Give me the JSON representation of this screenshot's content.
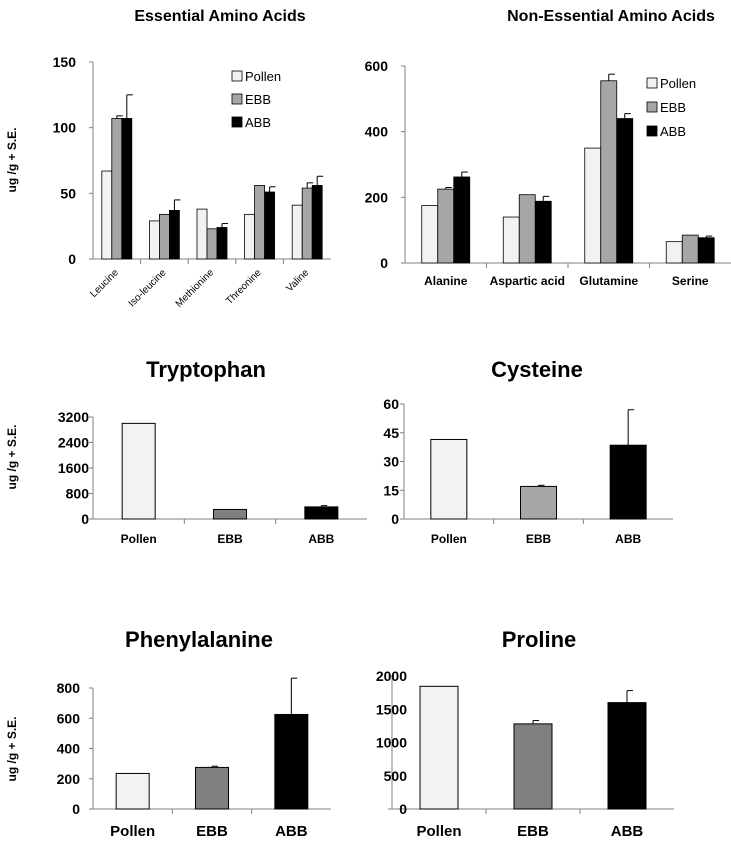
{
  "figure": {
    "ylabel": "ug /g + S.E.",
    "colors": {
      "Pollen": "#f2f2f2",
      "EBB_light": "#a6a6a6",
      "EBB_dark": "#808080",
      "ABB": "#000000",
      "axis": "#808080"
    }
  },
  "chart_data": [
    {
      "id": "essential",
      "type": "bar",
      "title": "Essential Amino Acids",
      "categories": [
        "Leucine",
        "Iso-leucine",
        "Methionine",
        "Threonine",
        "Valine"
      ],
      "series": [
        {
          "name": "Pollen",
          "values": [
            67,
            29,
            38,
            34,
            41
          ],
          "errors": [
            0,
            0,
            0,
            0,
            0
          ]
        },
        {
          "name": "EBB",
          "values": [
            107,
            34,
            23,
            56,
            54
          ],
          "errors": [
            2,
            0,
            0,
            0,
            4
          ]
        },
        {
          "name": "ABB",
          "values": [
            107,
            37,
            24,
            51,
            56
          ],
          "errors": [
            18,
            8,
            3,
            4,
            7
          ]
        }
      ],
      "ylim": [
        0,
        150
      ],
      "yticks": [
        0,
        50,
        100,
        150
      ],
      "legend": "top-right",
      "ylabel": "ug /g + S.E."
    },
    {
      "id": "nonessential",
      "type": "bar",
      "title": "Non-Essential Amino Acids",
      "categories": [
        "Alanine",
        "Aspartic acid",
        "Glutamine",
        "Serine"
      ],
      "series": [
        {
          "name": "Pollen",
          "values": [
            175,
            140,
            350,
            65
          ],
          "errors": [
            0,
            0,
            0,
            0
          ]
        },
        {
          "name": "EBB",
          "values": [
            225,
            208,
            555,
            85
          ],
          "errors": [
            5,
            0,
            20,
            0
          ]
        },
        {
          "name": "ABB",
          "values": [
            262,
            188,
            440,
            77
          ],
          "errors": [
            15,
            15,
            15,
            5
          ]
        }
      ],
      "ylim": [
        0,
        600
      ],
      "yticks": [
        0,
        200,
        400,
        600
      ],
      "legend": "top-right"
    },
    {
      "id": "tryptophan",
      "type": "bar",
      "title": "Tryptophan",
      "categories": [
        "Pollen",
        "EBB",
        "ABB"
      ],
      "values": [
        3000,
        300,
        380
      ],
      "errors": [
        0,
        0,
        40
      ],
      "ylim": [
        0,
        3200
      ],
      "yticks": [
        0,
        800,
        1600,
        2400,
        3200
      ],
      "ylabel": "ug /g + S.E."
    },
    {
      "id": "cysteine",
      "type": "bar",
      "title": "Cysteine",
      "categories": [
        "Pollen",
        "EBB",
        "ABB"
      ],
      "values": [
        41.5,
        17,
        38.5
      ],
      "errors": [
        0,
        0.6,
        18.5
      ],
      "ylim": [
        0,
        60
      ],
      "yticks": [
        0,
        15,
        30,
        45,
        60
      ]
    },
    {
      "id": "phenylalanine",
      "type": "bar",
      "title": "Phenylalanine",
      "categories": [
        "Pollen",
        "EBB",
        "ABB"
      ],
      "values": [
        235,
        275,
        625
      ],
      "errors": [
        0,
        8,
        240
      ],
      "ylim": [
        0,
        800
      ],
      "yticks": [
        0,
        200,
        400,
        600,
        800
      ],
      "ytick_labels": [
        "0",
        "200",
        "400",
        "600",
        "800"
      ],
      "ylabel": "ug /g + S.E."
    },
    {
      "id": "proline",
      "type": "bar",
      "title": "Proline",
      "categories": [
        "Pollen",
        "EBB",
        "ABB"
      ],
      "values": [
        1845,
        1280,
        1600
      ],
      "errors": [
        0,
        50,
        180
      ],
      "ylim": [
        0,
        2000
      ],
      "yticks": [
        0,
        500,
        1000,
        1500,
        2000
      ]
    }
  ]
}
